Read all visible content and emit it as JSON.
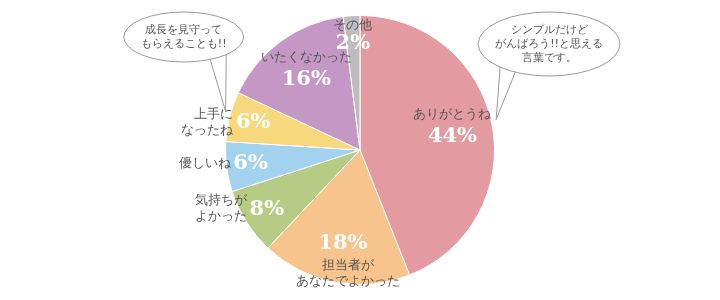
{
  "chart_data": {
    "type": "pie",
    "categories": [
      "ありがとうね",
      "担当者が\nあなたでよかった",
      "気持ちが\nよかった",
      "優しいね",
      "上手に\nなったね",
      "いたくなかった",
      "その他"
    ],
    "values": [
      44,
      18,
      8,
      6,
      6,
      16,
      2
    ],
    "value_labels": [
      "44%",
      "18%",
      "8%",
      "6%",
      "6%",
      "16%",
      "2%"
    ],
    "colors": [
      "#e39aa0",
      "#f6c48c",
      "#b6cc84",
      "#a3d2ee",
      "#f8d87c",
      "#c597c4",
      "#bdbdbd"
    ],
    "data_labels": true,
    "annotations": [
      {
        "text": "シンプルだけど\nがんばろう!!と思える\n言葉です。",
        "category": "ありがとうね"
      },
      {
        "text": "成長を見守って\nもらえることも!!",
        "category": "上手に\nなったね"
      }
    ]
  }
}
